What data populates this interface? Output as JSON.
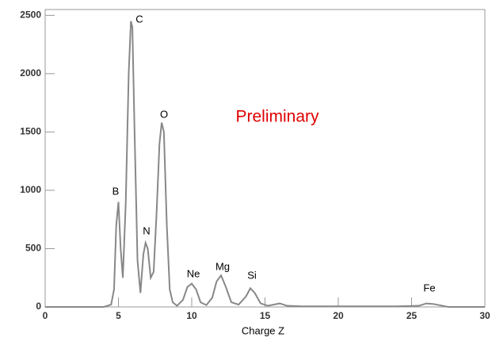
{
  "chart_data": {
    "type": "line",
    "x_label": "Charge Z",
    "x": [
      0,
      4,
      4.5,
      4.7,
      4.85,
      5.0,
      5.15,
      5.3,
      5.5,
      5.7,
      5.85,
      5.95,
      6.1,
      6.3,
      6.5,
      6.7,
      6.85,
      7.0,
      7.2,
      7.4,
      7.6,
      7.8,
      7.95,
      8.1,
      8.3,
      8.5,
      8.7,
      9.0,
      9.4,
      9.7,
      10.0,
      10.3,
      10.6,
      11.0,
      11.4,
      11.7,
      12.0,
      12.3,
      12.7,
      13.2,
      13.7,
      14.0,
      14.3,
      14.7,
      15.2,
      16.0,
      16.5,
      17.5,
      20,
      24,
      25.5,
      26,
      26.5,
      27.5,
      30
    ],
    "values": [
      0,
      0,
      20,
      150,
      700,
      900,
      500,
      250,
      900,
      2000,
      2450,
      2400,
      1500,
      400,
      120,
      450,
      550,
      500,
      250,
      300,
      800,
      1400,
      1580,
      1500,
      700,
      150,
      40,
      10,
      60,
      170,
      200,
      150,
      40,
      15,
      80,
      220,
      270,
      180,
      40,
      20,
      90,
      160,
      120,
      30,
      10,
      30,
      10,
      5,
      5,
      5,
      10,
      30,
      25,
      0,
      0
    ],
    "color": "#888888",
    "xlim": [
      0,
      30
    ],
    "xticks": [
      0,
      5,
      10,
      15,
      20,
      25,
      30
    ],
    "ylim": [
      0,
      2550
    ],
    "yticks": [
      0,
      500,
      1000,
      1500,
      2000,
      2500
    ],
    "annotations": [
      "C",
      "O",
      "B",
      "N",
      "Ne",
      "Mg",
      "Si",
      "Fe",
      "Preliminary"
    ]
  }
}
